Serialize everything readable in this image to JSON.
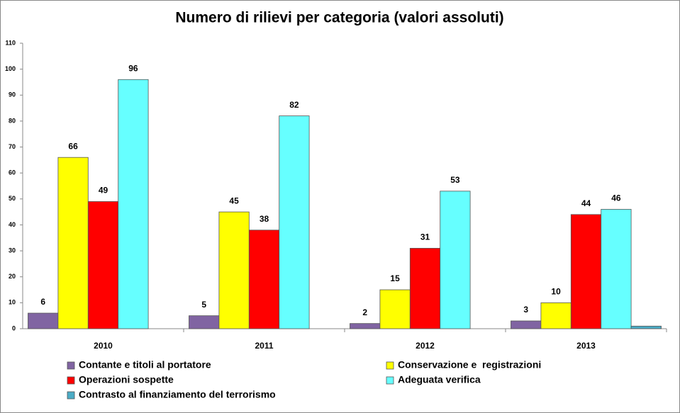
{
  "chart_data": {
    "type": "bar",
    "title": "Numero di rilievi per categoria (valori assoluti)",
    "categories": [
      "2010",
      "2011",
      "2012",
      "2013"
    ],
    "series": [
      {
        "name": "Contante e titoli al portatore",
        "color": "#8064a2",
        "values": [
          6,
          5,
          2,
          3
        ]
      },
      {
        "name": "Conservazione e  registrazioni",
        "color": "#ffff00",
        "values": [
          66,
          45,
          15,
          10
        ]
      },
      {
        "name": "Operazioni sospette",
        "color": "#ff0000",
        "values": [
          49,
          38,
          31,
          44
        ]
      },
      {
        "name": "Adeguata verifica",
        "color": "#66ffff",
        "values": [
          96,
          82,
          53,
          46
        ]
      },
      {
        "name": "Contrasto al finanziamento del terrorismo",
        "color": "#4bacc6",
        "values": [
          null,
          null,
          null,
          1
        ],
        "labels": false
      }
    ],
    "ylim": [
      0,
      110
    ],
    "yticks": [
      0,
      10,
      20,
      30,
      40,
      50,
      60,
      70,
      80,
      90,
      100,
      110
    ],
    "grid": false
  }
}
